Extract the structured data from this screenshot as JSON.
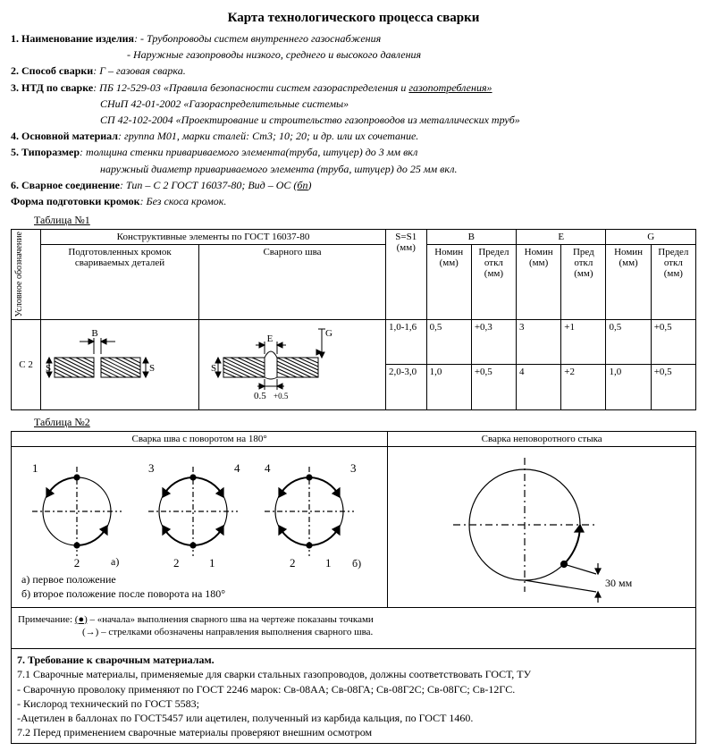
{
  "title": "Карта технологического процесса сварки",
  "items": [
    {
      "label": "1. Наименование изделия",
      "text": ": - Трубопроводы систем внутреннего  газоснабжения",
      "italic": true
    },
    {
      "indent": true,
      "text": "- Наружные газопроводы низкого, среднего и высокого давления",
      "italic": true
    },
    {
      "label": "2. Способ сварки",
      "text": ": Г – газовая сварка.",
      "italic": true
    },
    {
      "label": "3. НТД по сварке",
      "text": ": ПБ 12-529-03 «Правила безопасности систем газораспределения и газопотребления»",
      "italic": true,
      "under_last": true
    },
    {
      "indent2": true,
      "text": "СНиП 42-01-2002 «Газораспределительные системы»",
      "italic": true
    },
    {
      "indent2": true,
      "text": "СП 42-102-2004 «Проектирование и строительство газопроводов из металлических труб»",
      "italic": true
    },
    {
      "label": "4. Основной материал",
      "text": ": группа М01, марки сталей: Ст3; 10; 20; и др. или их сочетание.",
      "italic": true
    },
    {
      "label": "5. Типоразмер",
      "text": ": толщина стенки привариваемого элемента(труба, штуцер) до 3 мм вкл",
      "italic": true
    },
    {
      "indent2": true,
      "text": "наружный диаметр привариваемого элемента (труба, штуцер) до 25 мм вкл.",
      "italic": true
    },
    {
      "label": "6. Сварное соединение",
      "text": ": Тип – С 2 ГОСТ 16037-80; Вид – ОС (бп)",
      "italic": true,
      "under_last_short": true
    },
    {
      "label": "Форма подготовки кромок",
      "text": ":   Без скоса кромок.",
      "italic": true
    }
  ],
  "table1": {
    "label": "Таблица №1",
    "vheader": "Условное обозначение",
    "top_span": "Конструктивные элементы по ГОСТ 16037-80",
    "sub1": "Подготовленных кромок свариваемых деталей",
    "sub2": "Сварного шва",
    "s_col": "S=S1 (мм)",
    "groups": [
      "В",
      "Е",
      "G"
    ],
    "nomin": "Номин (мм)",
    "pred": "Предел откл (мм)",
    "pred_short": "Пред откл (мм)",
    "row_label": "С 2",
    "rows": [
      {
        "s": "1,0-1,6",
        "b_n": "0,5",
        "b_p": "+0,3",
        "e_n": "3",
        "e_p": "+1",
        "g_n": "0,5",
        "g_p": "+0,5"
      },
      {
        "s": "2,0-3,0",
        "b_n": "1,0",
        "b_p": "+0,5",
        "e_n": "4",
        "e_p": "+2",
        "g_n": "1,0",
        "g_p": "+0,5"
      }
    ],
    "diag1": {
      "label_B": "B",
      "label_S": "S",
      "label_S2": "S"
    },
    "diag2": {
      "label_E": "E",
      "label_G": "G",
      "label_S": "S",
      "dim": "0.5",
      "tol": "+0.5"
    }
  },
  "table2": {
    "label": "Таблица №2",
    "h1": "Сварка шва с поворотом на 180°",
    "h2": "Сварка неповоротного стыка",
    "a_label": "а)",
    "b_label": "б)",
    "line_a": "а) первое положение",
    "line_b": "б) второе положение после поворота на 180°",
    "dim30": "30 мм",
    "note1_lead": "Примечание:",
    "note1_sym": "(●)",
    "note1": " – «начала» выполнения сварного шва на чертеже показаны точками",
    "note2_sym": "(→)",
    "note2": " – стрелками обозначены направления выполнения сварного шва."
  },
  "section7": {
    "title": "7. Требование к сварочным материалам.",
    "lines": [
      "7.1 Сварочные материалы, применяемые для сварки стальных газопроводов, должны соответствовать ГОСТ, ТУ",
      "- Сварочную проволоку применяют по ГОСТ 2246 марок: Св-08АА; Св-08ГА; Св-08Г2С; Св-08ГС; Св-12ГС.",
      "- Кислород технический по ГОСТ 5583;",
      "-Ацетилен в баллонах по ГОСТ5457 или ацетилен, полученный из карбида кальция, по ГОСТ 1460.",
      "7.2  Перед применением сварочные материалы проверяют внешним осмотром"
    ]
  }
}
